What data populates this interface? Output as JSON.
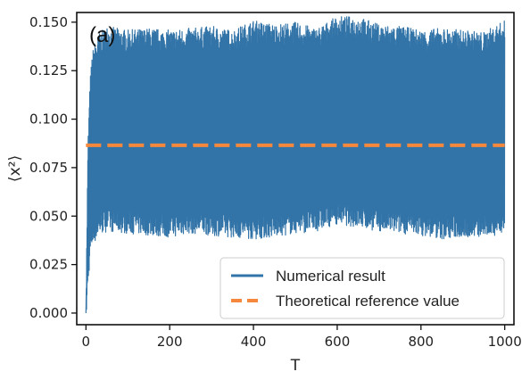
{
  "chart_data": {
    "type": "line",
    "panel_label": "(a)",
    "xlabel": "T",
    "ylabel": "⟨x²⟩",
    "xlim": [
      -22,
      1022
    ],
    "ylim": [
      -0.006,
      0.155
    ],
    "x_ticks": [
      0,
      200,
      400,
      600,
      800,
      1000
    ],
    "x_tick_labels": [
      "0",
      "200",
      "400",
      "600",
      "800",
      "1000"
    ],
    "y_ticks": [
      0.0,
      0.025,
      0.05,
      0.075,
      0.1,
      0.125,
      0.15
    ],
    "y_tick_labels": [
      "0.000",
      "0.025",
      "0.050",
      "0.075",
      "0.100",
      "0.125",
      "0.150"
    ],
    "grid": false,
    "legend_position": "lower-right",
    "series": [
      {
        "name": "Numerical result",
        "style": "solid",
        "color": "#3274a8",
        "x": [
          0,
          5,
          10,
          15,
          20,
          25,
          30,
          50,
          100,
          150,
          200,
          250,
          300,
          350,
          400,
          450,
          500,
          550,
          600,
          650,
          700,
          750,
          800,
          850,
          900,
          950,
          1000
        ],
        "upper": [
          0.0,
          0.085,
          0.115,
          0.128,
          0.133,
          0.135,
          0.138,
          0.142,
          0.14,
          0.141,
          0.14,
          0.141,
          0.142,
          0.14,
          0.145,
          0.143,
          0.144,
          0.141,
          0.147,
          0.147,
          0.143,
          0.142,
          0.14,
          0.141,
          0.14,
          0.139,
          0.145
        ],
        "lower": [
          0.0,
          0.02,
          0.034,
          0.04,
          0.042,
          0.044,
          0.046,
          0.048,
          0.047,
          0.046,
          0.045,
          0.047,
          0.046,
          0.045,
          0.044,
          0.045,
          0.047,
          0.048,
          0.052,
          0.05,
          0.048,
          0.047,
          0.046,
          0.044,
          0.045,
          0.045,
          0.047
        ]
      },
      {
        "name": "Theoretical reference value",
        "style": "dashed",
        "color": "#f5883c",
        "x": [
          0,
          1000
        ],
        "y": [
          0.0865,
          0.0865
        ]
      }
    ]
  }
}
